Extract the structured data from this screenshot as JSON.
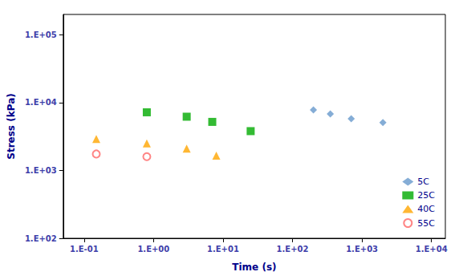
{
  "chart_data": {
    "type": "scatter",
    "xlabel": "Time (s)",
    "ylabel": "Stress (kPa)",
    "log": true,
    "grid": false,
    "legend": "lower right",
    "xlim": [
      0.05011872336272722,
      15848.931924611174
    ],
    "ylim": [
      100,
      199526.23149688813
    ],
    "xticks": [
      {
        "value": 0.1,
        "label": "1.E-01"
      },
      {
        "value": 1.0,
        "label": "1.E+00"
      },
      {
        "value": 10.0,
        "label": "1.E+01"
      },
      {
        "value": 100.0,
        "label": "1.E+02"
      },
      {
        "value": 1000.0,
        "label": "1.E+03"
      },
      {
        "value": 10000.0,
        "label": "1.E+04"
      }
    ],
    "yticks": [
      {
        "value": 100,
        "label": "1.E+02"
      },
      {
        "value": 1000,
        "label": "1.E+03"
      },
      {
        "value": 10000,
        "label": "1.E+04"
      },
      {
        "value": 100000,
        "label": "1.E+05"
      }
    ],
    "series": [
      {
        "name": "5C",
        "color": "#6699CC",
        "marker": "diamond",
        "x": [
          200,
          350,
          700,
          2000
        ],
        "values": [
          7800,
          6800,
          5800,
          5100
        ]
      },
      {
        "name": "25C",
        "color": "#00AA00",
        "marker": "square",
        "x": [
          0.8,
          3,
          7,
          25
        ],
        "values": [
          7200,
          6200,
          5200,
          3800
        ]
      },
      {
        "name": "40C",
        "color": "#FFA500",
        "marker": "triangle",
        "x": [
          0.15,
          0.8,
          3,
          8
        ],
        "values": [
          2900,
          2500,
          2100,
          1650
        ]
      },
      {
        "name": "55C",
        "color": "#FF6666",
        "marker": "circle-open",
        "x": [
          0.15,
          0.8
        ],
        "values": [
          1750,
          1600
        ]
      }
    ]
  }
}
